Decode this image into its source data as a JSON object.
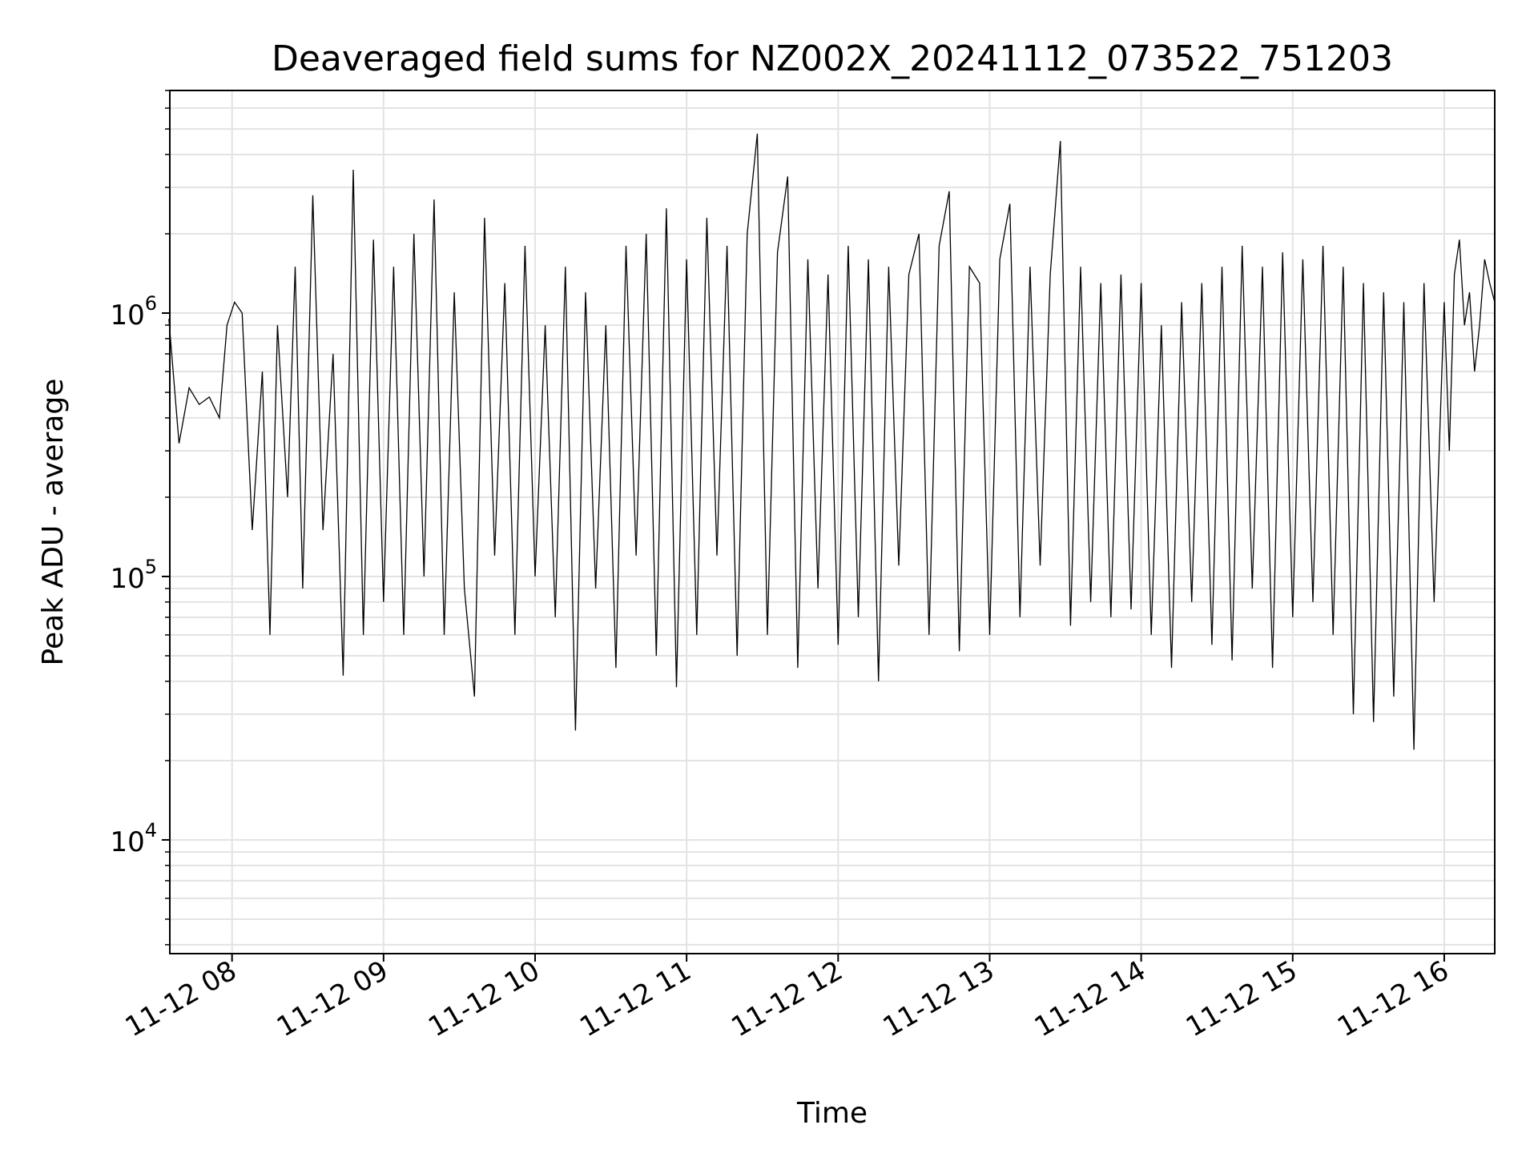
{
  "chart_data": {
    "type": "line",
    "title": "Deaveraged field sums for NZ002X_20241112_073522_751203",
    "xlabel": "Time",
    "ylabel": "Peak ADU - average",
    "yscale": "log",
    "xlim": [
      "2024-11-12 07:35:22",
      "2024-11-12 16:20:00"
    ],
    "ylim": [
      3700,
      7000000
    ],
    "grid": true,
    "line_color": "#000000",
    "x_ticks": [
      "11-12 08",
      "11-12 09",
      "11-12 10",
      "11-12 11",
      "11-12 12",
      "11-12 13",
      "11-12 14",
      "11-12 15",
      "11-12 16"
    ],
    "y_ticks": [
      {
        "value": 10000,
        "base": "10",
        "exp": "4"
      },
      {
        "value": 100000,
        "base": "10",
        "exp": "5"
      },
      {
        "value": 1000000,
        "base": "10",
        "exp": "6"
      }
    ],
    "series": [
      {
        "x": [
          "07:35",
          "07:39",
          "07:43",
          "07:47",
          "07:51",
          "07:55",
          "07:58",
          "08:01",
          "08:04",
          "08:08",
          "08:12",
          "08:15",
          "08:18",
          "08:22",
          "08:25",
          "08:28",
          "08:32",
          "08:36",
          "08:40",
          "08:44",
          "08:48",
          "08:52",
          "08:56",
          "09:00",
          "09:04",
          "09:08",
          "09:12",
          "09:16",
          "09:20",
          "09:24",
          "09:28",
          "09:32",
          "09:36",
          "09:40",
          "09:44",
          "09:48",
          "09:52",
          "09:56",
          "10:00",
          "10:04",
          "10:08",
          "10:12",
          "10:16",
          "10:20",
          "10:24",
          "10:28",
          "10:32",
          "10:36",
          "10:40",
          "10:44",
          "10:48",
          "10:52",
          "10:56",
          "11:00",
          "11:04",
          "11:08",
          "11:12",
          "11:16",
          "11:20",
          "11:24",
          "11:28",
          "11:32",
          "11:36",
          "11:40",
          "11:44",
          "11:48",
          "11:52",
          "11:56",
          "12:00",
          "12:04",
          "12:08",
          "12:12",
          "12:16",
          "12:20",
          "12:24",
          "12:28",
          "12:32",
          "12:36",
          "12:40",
          "12:44",
          "12:48",
          "12:52",
          "12:56",
          "13:00",
          "13:04",
          "13:08",
          "13:12",
          "13:16",
          "13:20",
          "13:24",
          "13:28",
          "13:32",
          "13:36",
          "13:40",
          "13:44",
          "13:48",
          "13:52",
          "13:56",
          "14:00",
          "14:04",
          "14:08",
          "14:12",
          "14:16",
          "14:20",
          "14:24",
          "14:28",
          "14:32",
          "14:36",
          "14:40",
          "14:44",
          "14:48",
          "14:52",
          "14:56",
          "15:00",
          "15:04",
          "15:08",
          "15:12",
          "15:16",
          "15:20",
          "15:24",
          "15:28",
          "15:32",
          "15:36",
          "15:40",
          "15:44",
          "15:48",
          "15:52",
          "15:56",
          "16:00",
          "16:02",
          "16:04",
          "16:06",
          "16:08",
          "16:10",
          "16:12",
          "16:14",
          "16:16",
          "16:18",
          "16:20"
        ],
        "y": [
          950000,
          320000,
          520000,
          450000,
          480000,
          400000,
          900000,
          1100000,
          1000000,
          150000,
          600000,
          60000,
          900000,
          200000,
          1500000,
          90000,
          2800000,
          150000,
          700000,
          42000,
          3500000,
          60000,
          1900000,
          80000,
          1500000,
          60000,
          2000000,
          100000,
          2700000,
          60000,
          1200000,
          90000,
          35000,
          2300000,
          120000,
          1300000,
          60000,
          1800000,
          100000,
          900000,
          70000,
          1500000,
          26000,
          1200000,
          90000,
          900000,
          45000,
          1800000,
          120000,
          2000000,
          50000,
          2500000,
          38000,
          1600000,
          60000,
          2300000,
          120000,
          1800000,
          50000,
          2000000,
          4800000,
          60000,
          1700000,
          3300000,
          45000,
          1600000,
          90000,
          1400000,
          55000,
          1800000,
          70000,
          1600000,
          40000,
          1500000,
          110000,
          1400000,
          2000000,
          60000,
          1800000,
          2900000,
          52000,
          1500000,
          1300000,
          60000,
          1600000,
          2600000,
          70000,
          1500000,
          110000,
          1400000,
          4500000,
          65000,
          1500000,
          80000,
          1300000,
          70000,
          1400000,
          75000,
          1300000,
          60000,
          900000,
          45000,
          1100000,
          80000,
          1300000,
          55000,
          1500000,
          48000,
          1800000,
          90000,
          1500000,
          45000,
          1700000,
          70000,
          1600000,
          80000,
          1800000,
          60000,
          1500000,
          30000,
          1300000,
          28000,
          1200000,
          35000,
          1100000,
          22000,
          1300000,
          80000,
          1100000,
          300000,
          1400000,
          1900000,
          900000,
          1200000,
          600000,
          900000,
          1600000,
          1300000,
          1100000
        ]
      }
    ]
  }
}
